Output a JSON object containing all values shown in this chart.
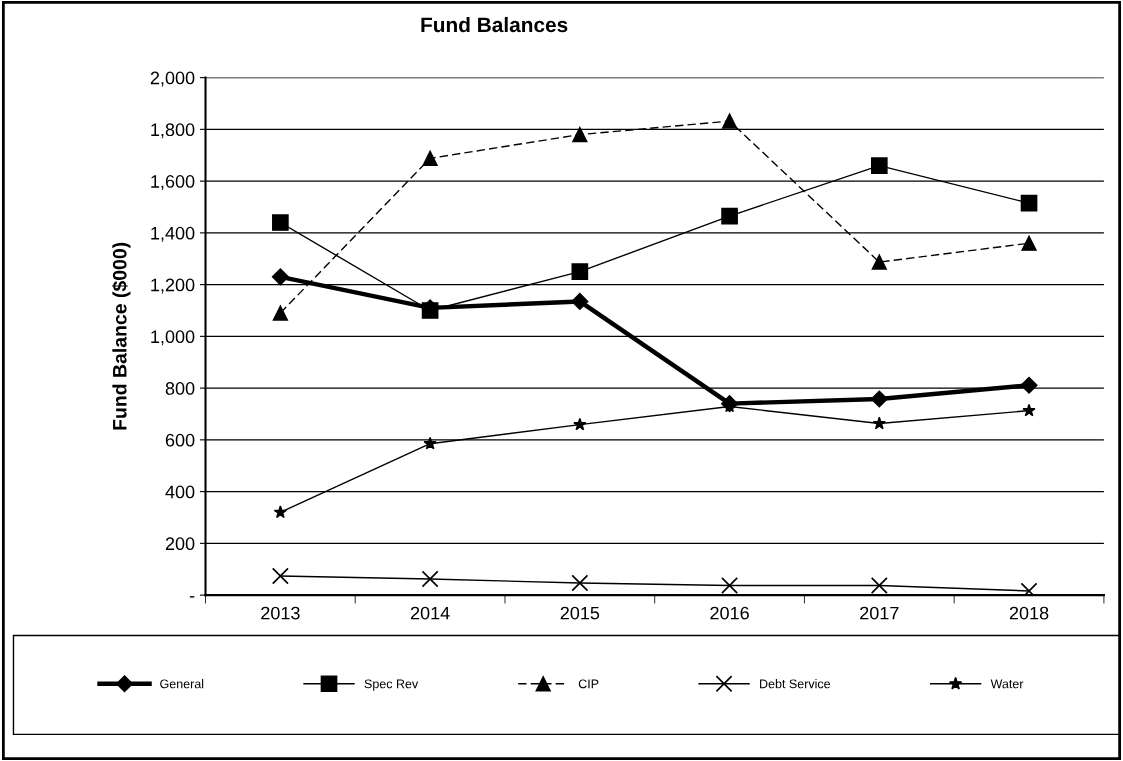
{
  "chart_data": {
    "type": "line",
    "title": "Fund Balances",
    "ylabel": "Fund Balance ($000)",
    "categories": [
      "2013",
      "2014",
      "2015",
      "2016",
      "2017",
      "2018"
    ],
    "series": [
      {
        "name": "General",
        "color": "#000000",
        "marker": "diamond",
        "line_style": "solid",
        "values": [
          1230,
          1110,
          1135,
          740,
          758,
          811
        ]
      },
      {
        "name": "Spec Rev",
        "color": "#000000",
        "marker": "square",
        "line_style": "solid",
        "values": [
          1440,
          1100,
          1250,
          1465,
          1660,
          1515
        ]
      },
      {
        "name": "CIP",
        "color": "#000000",
        "marker": "triangle",
        "line_style": "dashed",
        "values": [
          1090,
          1688,
          1780,
          1832,
          1287,
          1360
        ]
      },
      {
        "name": "Debt Service",
        "color": "#000000",
        "marker": "cross",
        "line_style": "solid",
        "values": [
          74,
          62,
          47,
          37,
          37,
          16
        ]
      },
      {
        "name": "Water",
        "color": "#000000",
        "marker": "star",
        "line_style": "solid",
        "values": [
          320,
          585,
          659,
          729,
          663,
          713
        ]
      }
    ],
    "ylim": [
      0,
      2000
    ],
    "yticks": [
      {
        "value": 0,
        "label": "-"
      },
      {
        "value": 200,
        "label": "200"
      },
      {
        "value": 400,
        "label": "400"
      },
      {
        "value": 600,
        "label": "600"
      },
      {
        "value": 800,
        "label": "800"
      },
      {
        "value": 1000,
        "label": "1,000"
      },
      {
        "value": 1200,
        "label": "1,200"
      },
      {
        "value": 1400,
        "label": "1,400"
      },
      {
        "value": 1600,
        "label": "1,600"
      },
      {
        "value": 1800,
        "label": "1,800"
      },
      {
        "value": 2000,
        "label": "2,000"
      }
    ],
    "grid": "y",
    "legend": "bottom"
  }
}
